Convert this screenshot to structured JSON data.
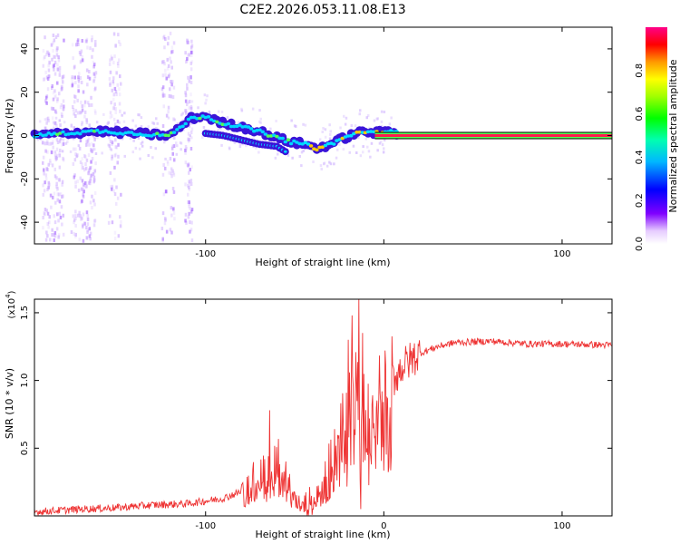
{
  "title": "C2E2.2026.053.11.08.E13",
  "colors": {
    "snr_line": "#ee3333",
    "fixed_band": "#ff1a4d"
  },
  "chart_data": [
    {
      "type": "heatmap",
      "name": "spectrogram",
      "xlabel": "Height of straight line (km)",
      "ylabel": "Frequency (Hz)",
      "xlim": [
        -196,
        128
      ],
      "ylim": [
        -50,
        50
      ],
      "xticks": [
        -100,
        0,
        100
      ],
      "xtick_labels": [
        "-100",
        "",
        "100"
      ],
      "yticks": [
        -40,
        -20,
        0,
        20,
        40
      ],
      "ytick_labels": [
        "-40",
        "-20",
        "0",
        "20",
        "40"
      ],
      "colorbar": {
        "label": "Normalized spectral amplitude",
        "range": [
          0,
          1
        ],
        "ticks": [
          0.0,
          0.2,
          0.4,
          0.6,
          0.8
        ],
        "tick_labels": [
          "0.0",
          "0.2",
          "0.4",
          "0.6",
          "0.8"
        ]
      },
      "ridge": {
        "description_points_x": [
          -196,
          -180,
          -160,
          -140,
          -120,
          -108,
          -100,
          -92,
          -80,
          -70,
          -60,
          -52,
          -44,
          -38,
          -30,
          -22,
          -16,
          -10,
          -5,
          0,
          3,
          8
        ],
        "description_points_y": [
          0,
          1,
          2,
          1,
          0,
          8,
          9,
          6,
          4,
          2,
          -1,
          -3,
          -4,
          -6,
          -4,
          -1,
          1,
          2,
          1,
          2,
          2,
          1
        ],
        "secondary_x": [
          -100,
          -90,
          -80,
          -70,
          -60,
          -54
        ],
        "secondary_y": [
          1,
          0,
          -2,
          -4,
          -5,
          -8
        ],
        "constant_band": {
          "x_from": -5,
          "x_to": 128,
          "frequency": 0,
          "amplitude": 0.95
        }
      }
    },
    {
      "type": "line",
      "name": "snr",
      "xlabel": "Height of straight line (km)",
      "ylabel": "SNR (10 * v/v)",
      "scale_label": "(x10",
      "scale_exponent": "4",
      "scale_close": ")",
      "xlim": [
        -196,
        128
      ],
      "ylim": [
        0,
        1.6
      ],
      "xticks": [
        -100,
        0,
        100
      ],
      "xtick_labels": [
        "-100",
        "0",
        "100"
      ],
      "yticks": [
        0.5,
        1.0,
        1.5
      ],
      "ytick_labels": [
        "0.5",
        "1.0",
        "1.5"
      ],
      "series": [
        {
          "name": "SNR",
          "envelope_x": [
            -196,
            -170,
            -150,
            -130,
            -110,
            -90,
            -80,
            -72,
            -66,
            -60,
            -55,
            -50,
            -45,
            -40,
            -35,
            -30,
            -25,
            -20,
            -17,
            -14,
            -12,
            -10,
            -8,
            -5,
            0,
            5,
            10,
            20,
            30,
            40,
            60,
            80,
            100,
            128
          ],
          "envelope_y": [
            0.03,
            0.05,
            0.06,
            0.08,
            0.09,
            0.13,
            0.18,
            0.26,
            0.33,
            0.38,
            0.25,
            0.12,
            0.06,
            0.1,
            0.2,
            0.35,
            0.5,
            0.75,
            0.9,
            0.85,
            0.8,
            0.6,
            0.75,
            0.8,
            0.9,
            1.0,
            1.1,
            1.2,
            1.25,
            1.28,
            1.29,
            1.27,
            1.27,
            1.26
          ],
          "peaks": [
            {
              "x": -64,
              "y": 0.78
            },
            {
              "x": -14,
              "y": 1.6
            },
            {
              "x": -18,
              "y": 1.48
            },
            {
              "x": -12,
              "y": 1.35
            },
            {
              "x": -20,
              "y": 1.3
            },
            {
              "x": -13,
              "y": 0.05
            }
          ]
        }
      ]
    }
  ]
}
